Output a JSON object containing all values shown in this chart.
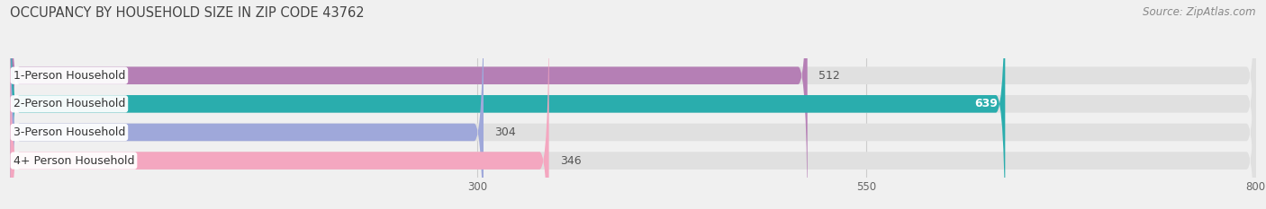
{
  "title": "OCCUPANCY BY HOUSEHOLD SIZE IN ZIP CODE 43762",
  "source": "Source: ZipAtlas.com",
  "categories": [
    "1-Person Household",
    "2-Person Household",
    "3-Person Household",
    "4+ Person Household"
  ],
  "values": [
    512,
    639,
    304,
    346
  ],
  "bar_colors": [
    "#b57fb5",
    "#2aadad",
    "#9fa8da",
    "#f4a7c0"
  ],
  "xlim_min": 0,
  "xlim_max": 800,
  "xticks": [
    300,
    550,
    800
  ],
  "background_color": "#f0f0f0",
  "bar_bg_color": "#e0e0e0",
  "title_fontsize": 10.5,
  "source_fontsize": 8.5,
  "label_fontsize": 9,
  "value_fontsize": 9
}
